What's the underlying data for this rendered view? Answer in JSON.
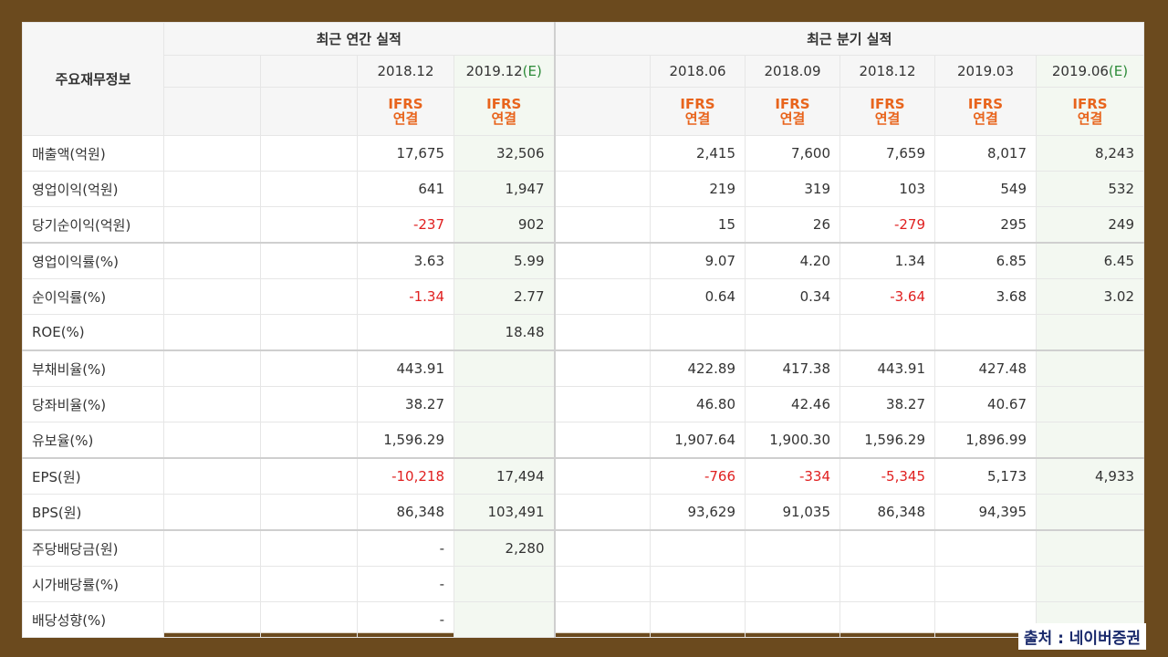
{
  "header": {
    "corner_label": "주요재무정보",
    "annual_title": "최근 연간 실적",
    "quarter_title": "최근 분기 실적",
    "annual_periods": [
      {
        "date": "2018.12",
        "est": ""
      },
      {
        "date": "2019.12",
        "est": "(E)"
      }
    ],
    "quarter_periods": [
      {
        "date": "2018.06",
        "est": ""
      },
      {
        "date": "2018.09",
        "est": ""
      },
      {
        "date": "2018.12",
        "est": ""
      },
      {
        "date": "2019.03",
        "est": ""
      },
      {
        "date": "2019.06",
        "est": "(E)"
      }
    ],
    "ifrs_line1": "IFRS",
    "ifrs_line2": "연결"
  },
  "rows": [
    {
      "label": "매출액(억원)",
      "annual": [
        "17,675",
        "32,506"
      ],
      "quarter": [
        "2,415",
        "7,600",
        "7,659",
        "8,017",
        "8,243"
      ]
    },
    {
      "label": "영업이익(억원)",
      "annual": [
        "641",
        "1,947"
      ],
      "quarter": [
        "219",
        "319",
        "103",
        "549",
        "532"
      ]
    },
    {
      "label": "당기순이익(억원)",
      "annual": [
        "-237",
        "902"
      ],
      "quarter": [
        "15",
        "26",
        "-279",
        "295",
        "249"
      ]
    },
    {
      "label": "영업이익률(%)",
      "annual": [
        "3.63",
        "5.99"
      ],
      "quarter": [
        "9.07",
        "4.20",
        "1.34",
        "6.85",
        "6.45"
      ]
    },
    {
      "label": "순이익률(%)",
      "annual": [
        "-1.34",
        "2.77"
      ],
      "quarter": [
        "0.64",
        "0.34",
        "-3.64",
        "3.68",
        "3.02"
      ]
    },
    {
      "label": "ROE(%)",
      "annual": [
        "",
        "18.48"
      ],
      "quarter": [
        "",
        "",
        "",
        "",
        ""
      ]
    },
    {
      "label": "부채비율(%)",
      "annual": [
        "443.91",
        ""
      ],
      "quarter": [
        "422.89",
        "417.38",
        "443.91",
        "427.48",
        ""
      ]
    },
    {
      "label": "당좌비율(%)",
      "annual": [
        "38.27",
        ""
      ],
      "quarter": [
        "46.80",
        "42.46",
        "38.27",
        "40.67",
        ""
      ]
    },
    {
      "label": "유보율(%)",
      "annual": [
        "1,596.29",
        ""
      ],
      "quarter": [
        "1,907.64",
        "1,900.30",
        "1,596.29",
        "1,896.99",
        ""
      ]
    },
    {
      "label": "EPS(원)",
      "annual": [
        "-10,218",
        "17,494"
      ],
      "quarter": [
        "-766",
        "-334",
        "-5,345",
        "5,173",
        "4,933"
      ]
    },
    {
      "label": "BPS(원)",
      "annual": [
        "86,348",
        "103,491"
      ],
      "quarter": [
        "93,629",
        "91,035",
        "86,348",
        "94,395",
        ""
      ]
    },
    {
      "label": "주당배당금(원)",
      "annual": [
        "-",
        "2,280"
      ],
      "quarter": [
        "",
        "",
        "",
        "",
        ""
      ]
    },
    {
      "label": "시가배당률(%)",
      "annual": [
        "-",
        ""
      ],
      "quarter": [
        "",
        "",
        "",
        "",
        ""
      ]
    },
    {
      "label": "배당성향(%)",
      "annual": [
        "-",
        ""
      ],
      "quarter": [
        "",
        "",
        "",
        "",
        ""
      ]
    }
  ],
  "group_starts": [
    0,
    3,
    6,
    9,
    11
  ],
  "source_label": "출처 : 네이버증권"
}
